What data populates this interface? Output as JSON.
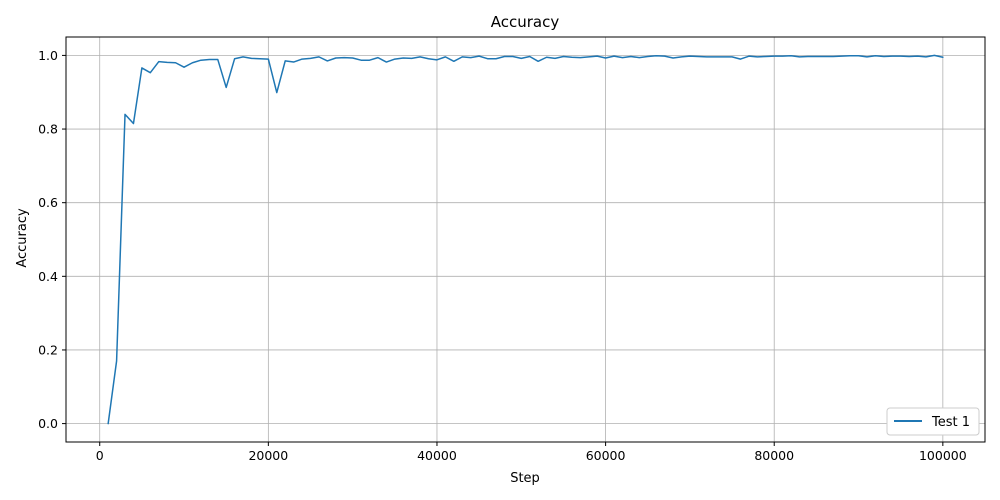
{
  "chart_data": {
    "type": "line",
    "title": "Accuracy",
    "xlabel": "Step",
    "ylabel": "Accuracy",
    "xlim": [
      -4000,
      105000
    ],
    "ylim": [
      -0.05,
      1.05
    ],
    "xticks": [
      0,
      20000,
      40000,
      60000,
      80000,
      100000
    ],
    "xtick_labels": [
      "0",
      "20000",
      "40000",
      "60000",
      "80000",
      "100000"
    ],
    "yticks": [
      0.0,
      0.2,
      0.4,
      0.6,
      0.8,
      1.0
    ],
    "ytick_labels": [
      "0.0",
      "0.2",
      "0.4",
      "0.6",
      "0.8",
      "1.0"
    ],
    "grid": true,
    "legend_position": "lower-right",
    "series": [
      {
        "name": "Test 1",
        "color": "#1f77b4",
        "x": [
          1000,
          2000,
          3000,
          4000,
          5000,
          6000,
          7000,
          8000,
          9000,
          10000,
          11000,
          12000,
          13000,
          14000,
          15000,
          16000,
          17000,
          18000,
          19000,
          20000,
          21000,
          22000,
          23000,
          24000,
          25000,
          26000,
          27000,
          28000,
          29000,
          30000,
          31000,
          32000,
          33000,
          34000,
          35000,
          36000,
          37000,
          38000,
          39000,
          40000,
          41000,
          42000,
          43000,
          44000,
          45000,
          46000,
          47000,
          48000,
          49000,
          50000,
          51000,
          52000,
          53000,
          54000,
          55000,
          56000,
          57000,
          58000,
          59000,
          60000,
          61000,
          62000,
          63000,
          64000,
          65000,
          66000,
          67000,
          68000,
          69000,
          70000,
          71000,
          72000,
          73000,
          74000,
          75000,
          76000,
          77000,
          78000,
          79000,
          80000,
          81000,
          82000,
          83000,
          84000,
          85000,
          86000,
          87000,
          88000,
          89000,
          90000,
          91000,
          92000,
          93000,
          94000,
          95000,
          96000,
          97000,
          98000,
          99000,
          100000
        ],
        "y": [
          0.0,
          0.17,
          0.84,
          0.815,
          0.966,
          0.953,
          0.983,
          0.981,
          0.98,
          0.968,
          0.98,
          0.987,
          0.989,
          0.989,
          0.913,
          0.991,
          0.996,
          0.992,
          0.991,
          0.99,
          0.899,
          0.985,
          0.982,
          0.99,
          0.992,
          0.996,
          0.985,
          0.993,
          0.994,
          0.993,
          0.987,
          0.987,
          0.994,
          0.982,
          0.99,
          0.993,
          0.992,
          0.996,
          0.991,
          0.988,
          0.996,
          0.984,
          0.996,
          0.994,
          0.998,
          0.991,
          0.991,
          0.997,
          0.997,
          0.992,
          0.997,
          0.984,
          0.995,
          0.992,
          0.997,
          0.995,
          0.994,
          0.996,
          0.998,
          0.993,
          0.998,
          0.994,
          0.997,
          0.994,
          0.997,
          0.999,
          0.998,
          0.993,
          0.996,
          0.998,
          0.997,
          0.996,
          0.996,
          0.996,
          0.996,
          0.99,
          0.998,
          0.996,
          0.997,
          0.998,
          0.998,
          0.999,
          0.996,
          0.997,
          0.997,
          0.997,
          0.997,
          0.998,
          0.999,
          0.999,
          0.996,
          0.999,
          0.997,
          0.998,
          0.998,
          0.997,
          0.998,
          0.996,
          1.0,
          0.995
        ]
      }
    ]
  }
}
